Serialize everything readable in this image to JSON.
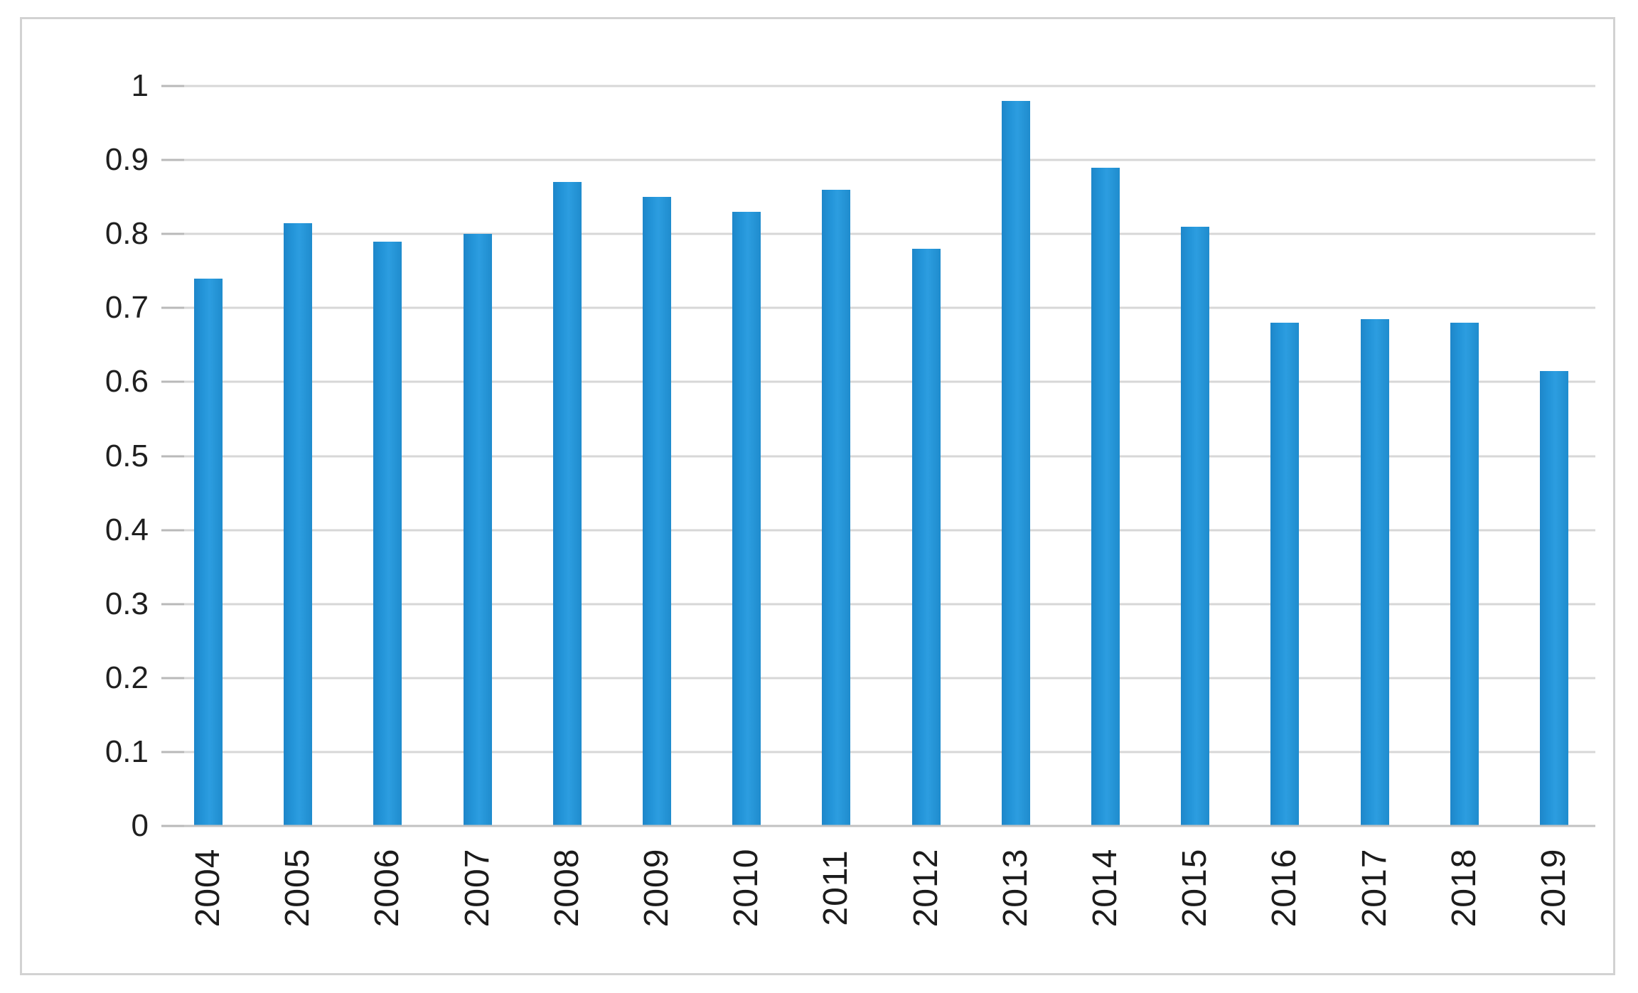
{
  "chart_data": {
    "type": "bar",
    "title": "",
    "xlabel": "",
    "ylabel": "",
    "categories": [
      "2004",
      "2005",
      "2006",
      "2007",
      "2008",
      "2009",
      "2010",
      "2011",
      "2012",
      "2013",
      "2014",
      "2015",
      "2016",
      "2017",
      "2018",
      "2019"
    ],
    "values": [
      0.74,
      0.815,
      0.79,
      0.8,
      0.87,
      0.85,
      0.83,
      0.86,
      0.78,
      0.98,
      0.89,
      0.81,
      0.68,
      0.685,
      0.68,
      0.615
    ],
    "ylim": [
      0,
      1
    ],
    "ytick_step": 0.1,
    "yticks": [
      "1",
      "0.9",
      "0.8",
      "0.7",
      "0.6",
      "0.5",
      "0.4",
      "0.3",
      "0.2",
      "0.1",
      "0"
    ],
    "grid": true,
    "legend": null,
    "colors": {
      "bar": "#2394d8",
      "gridline": "#d7d7d7",
      "axis_line": "#c2c2c2",
      "tick": "#b9b9b9",
      "label_text": "#1f1f1f",
      "frame_border": "#d2d2d2",
      "background": "#ffffff"
    }
  }
}
